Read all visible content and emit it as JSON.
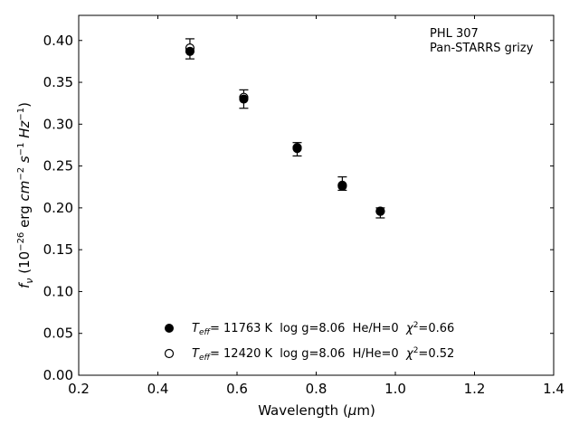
{
  "chart_data": {
    "type": "scatter",
    "annotation": {
      "line1": "PHL 307",
      "line2": "Pan-STARRS grizy"
    },
    "xlabel": {
      "main": "Wavelength (",
      "sym": "μ",
      "tail": "m)"
    },
    "ylabel": {
      "f": "f",
      "nu": "ν",
      "open": " (10",
      "e1": "−26",
      "mid": " erg ",
      "cm": "cm",
      "e2": "−2",
      "s": " s",
      "e3": "−1",
      "hz": " Hz",
      "e4": "−1",
      "close": ")"
    },
    "xlim": [
      0.2,
      1.4
    ],
    "ylim": [
      0.0,
      0.43
    ],
    "xticks": [
      0.2,
      0.4,
      0.6,
      0.8,
      1.0,
      1.2,
      1.4
    ],
    "yticks": [
      0.0,
      0.05,
      0.1,
      0.15,
      0.2,
      0.25,
      0.3,
      0.35,
      0.4
    ],
    "observed": {
      "x": [
        0.481,
        0.617,
        0.752,
        0.866,
        0.962
      ],
      "y": [
        0.39,
        0.33,
        0.27,
        0.229,
        0.194
      ],
      "err": [
        0.012,
        0.011,
        0.008,
        0.008,
        0.006
      ]
    },
    "series": [
      {
        "marker": "filled",
        "teff": "= 11763 K",
        "rest": "  log g=8.06  He/H=0  ",
        "chi": "=0.66",
        "x": [
          0.481,
          0.617,
          0.752,
          0.866,
          0.962
        ],
        "y": [
          0.387,
          0.33,
          0.271,
          0.226,
          0.196
        ]
      },
      {
        "marker": "open",
        "teff": "= 12420 K",
        "rest": "  log g=8.06  H/He=0  ",
        "chi": "=0.52",
        "x": [
          0.481,
          0.617,
          0.752,
          0.866,
          0.962
        ],
        "y": [
          0.391,
          0.332,
          0.272,
          0.227,
          0.196
        ]
      }
    ],
    "legend_location": "lower-center",
    "grid": false
  }
}
